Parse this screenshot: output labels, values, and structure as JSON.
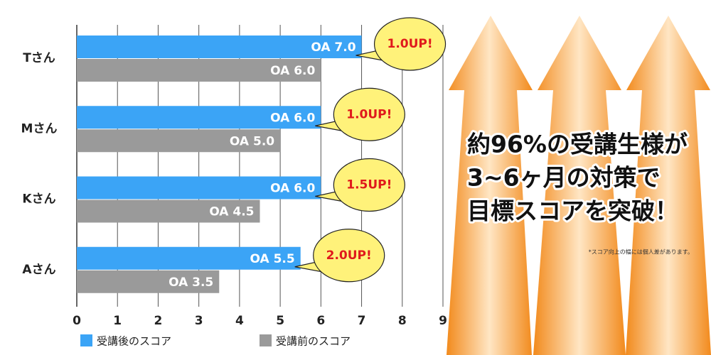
{
  "chart_data": {
    "type": "hbar",
    "categories": [
      "Tさん",
      "Mさん",
      "Kさん",
      "Aさん"
    ],
    "series": [
      {
        "name": "受講後のスコア",
        "color": "#3ba4f6",
        "values": [
          7.0,
          6.0,
          6.0,
          5.5
        ],
        "value_labels": [
          "OA 7.0",
          "OA 6.0",
          "OA 6.0",
          "OA 5.5"
        ]
      },
      {
        "name": "受講前のスコア",
        "color": "#9a9a9a",
        "values": [
          6.0,
          5.0,
          4.5,
          3.5
        ],
        "value_labels": [
          "OA 6.0",
          "OA 5.0",
          "OA 4.5",
          "OA 3.5"
        ]
      }
    ],
    "annotations": [
      "1.0UP!",
      "1.0UP!",
      "1.5UP!",
      "2.0UP!"
    ],
    "xlim": [
      0,
      9
    ],
    "xticks": [
      0,
      1,
      2,
      3,
      4,
      5,
      6,
      7,
      8,
      9
    ],
    "grid": true
  },
  "headline": [
    "約96%の受講生様が",
    "3~6ヶ月の対策で",
    "目標スコアを突破！"
  ],
  "note": "*スコア向上の幅には個人差があります。"
}
